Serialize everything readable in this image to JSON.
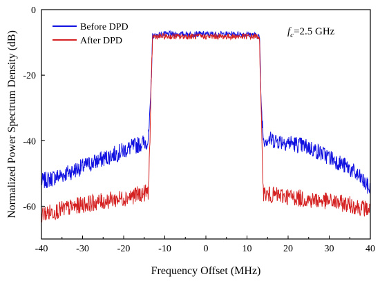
{
  "chart_data": {
    "type": "line",
    "xlabel": "Frequency Offset (MHz)",
    "ylabel": "Normalized Power Spectrum Density (dB)",
    "xlim": [
      -40,
      40
    ],
    "ylim": [
      -70,
      0
    ],
    "xticks": [
      -40,
      -30,
      -20,
      -10,
      0,
      10,
      20,
      30,
      40
    ],
    "yticks": [
      0,
      -20,
      -40,
      -60
    ],
    "grid": false,
    "legend_placement": "top-left",
    "annotation": {
      "symbol": "f",
      "subscript": "c",
      "text": "=2.5 GHz"
    },
    "series": [
      {
        "name": "Before DPD",
        "color": "#1010e0",
        "x": [
          -40,
          -35,
          -30,
          -25,
          -20,
          -15,
          -14,
          -13.5,
          -13,
          -10,
          -5,
          0,
          5,
          10,
          13,
          13.5,
          14,
          15,
          20,
          25,
          30,
          35,
          38,
          40
        ],
        "y": [
          -52.5,
          -50.5,
          -48,
          -45.5,
          -43,
          -40.5,
          -40,
          -30,
          -8,
          -7.5,
          -7.5,
          -7.5,
          -7.5,
          -7.5,
          -8,
          -30,
          -39.5,
          -39.5,
          -40.5,
          -42,
          -45,
          -48.5,
          -52,
          -55
        ]
      },
      {
        "name": "After DPD",
        "color": "#d42020",
        "x": [
          -40,
          -35,
          -30,
          -25,
          -20,
          -15,
          -14,
          -13.5,
          -13,
          -10,
          -5,
          0,
          5,
          10,
          13,
          13.5,
          14,
          15,
          20,
          25,
          30,
          35,
          38,
          40
        ],
        "y": [
          -62.5,
          -61,
          -59.5,
          -58.5,
          -57.5,
          -56,
          -55.5,
          -35,
          -8.2,
          -8.2,
          -8.2,
          -8.2,
          -8.2,
          -8.2,
          -8.2,
          -35,
          -56,
          -56.5,
          -57,
          -58,
          -58.5,
          -59.5,
          -60.5,
          -61
        ]
      }
    ]
  }
}
